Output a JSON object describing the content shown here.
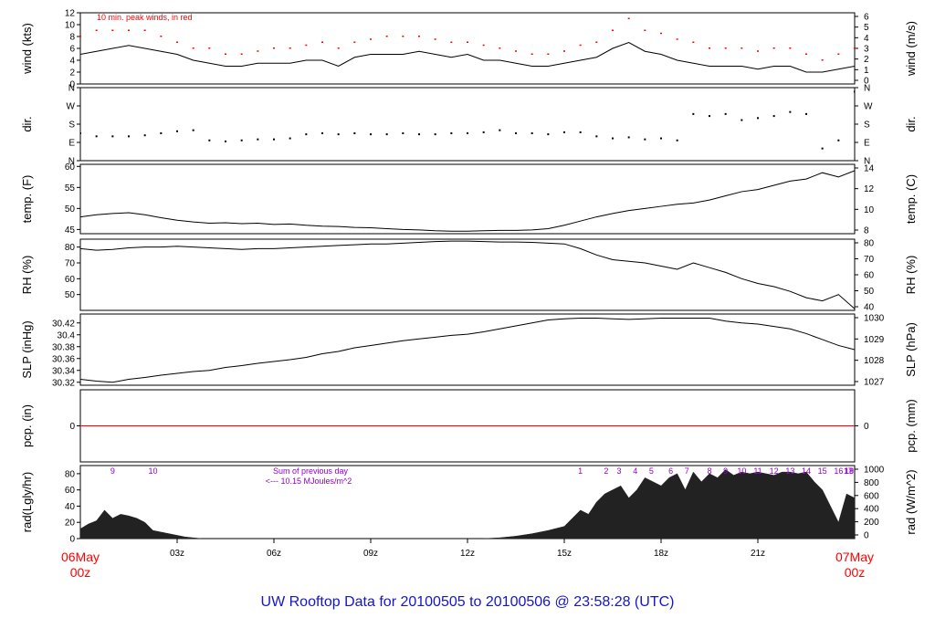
{
  "footer_title": "UW Rooftop Data for 20100505  to  20100506 @ 23:58:28  (UTC)",
  "x_axis": {
    "range_hours": [
      0,
      24
    ],
    "ticks": [
      {
        "h": 3,
        "label": "03z"
      },
      {
        "h": 6,
        "label": "06z"
      },
      {
        "h": 9,
        "label": "09z"
      },
      {
        "h": 12,
        "label": "12z"
      },
      {
        "h": 15,
        "label": "15z"
      },
      {
        "h": 18,
        "label": "18z"
      },
      {
        "h": 21,
        "label": "21z"
      }
    ],
    "start_label_top": "06May",
    "start_label_bottom": "00z",
    "end_label_top": "07May",
    "end_label_bottom": "00z"
  },
  "colors": {
    "axis": "#000000",
    "peak": "#ff0000",
    "precip_line": "#ff0000",
    "hour_markers": "#9400d3",
    "footer": "#1414d2",
    "date_labels": "#ff0000",
    "rad_fill": "#222222"
  },
  "chart_data": [
    {
      "type": "line",
      "id": "wind",
      "ylabel": "wind (kts)",
      "ylabel_right": "wind (m/s)",
      "ylim": [
        0,
        12
      ],
      "yticks": [
        0,
        2,
        4,
        6,
        8,
        10,
        12
      ],
      "yticks_right": [
        0,
        1,
        2,
        3,
        4,
        5,
        6
      ],
      "annotation": "10 min. peak winds, in red",
      "x": [
        0,
        0.5,
        1,
        1.5,
        2,
        2.5,
        3,
        3.5,
        4,
        4.5,
        5,
        5.5,
        6,
        6.5,
        7,
        7.5,
        8,
        8.5,
        9,
        9.5,
        10,
        10.5,
        11,
        11.5,
        12,
        12.5,
        13,
        13.5,
        14,
        14.5,
        15,
        15.5,
        16,
        16.5,
        17,
        17.5,
        18,
        18.5,
        19,
        19.5,
        20,
        20.5,
        21,
        21.5,
        22,
        22.5,
        23,
        23.5,
        24
      ],
      "values": [
        5,
        5.5,
        6,
        6.5,
        6,
        5.5,
        5,
        4,
        3.5,
        3,
        3,
        3.5,
        3.5,
        3.5,
        4,
        4,
        3,
        4.5,
        5,
        5,
        5,
        5.5,
        5,
        4.5,
        5,
        4,
        4,
        3.5,
        3,
        3,
        3.5,
        4,
        4.5,
        6,
        7,
        5.5,
        5,
        4,
        3.5,
        3,
        3,
        3,
        2.5,
        3,
        3,
        2,
        2,
        2.5,
        3
      ],
      "peak_values": [
        8,
        9,
        9,
        9,
        9,
        8,
        7,
        6,
        6,
        5,
        5,
        5.5,
        6,
        6,
        6.5,
        7,
        6,
        7,
        7.5,
        8,
        8,
        8,
        7.5,
        7,
        7,
        6.5,
        6,
        5.5,
        5,
        5,
        5.5,
        6.5,
        7,
        9,
        11,
        9,
        8.5,
        7.5,
        7,
        6,
        6,
        6,
        5.5,
        6,
        6,
        5,
        4,
        5,
        6
      ]
    },
    {
      "type": "scatter",
      "id": "dir",
      "ylabel": "dir.",
      "ylabel_right": "dir.",
      "ylim": [
        0,
        360
      ],
      "yticks": [
        {
          "v": 0,
          "label": "N"
        },
        {
          "v": 90,
          "label": "E"
        },
        {
          "v": 180,
          "label": "S"
        },
        {
          "v": 270,
          "label": "W"
        },
        {
          "v": 360,
          "label": "N"
        }
      ],
      "x": [
        0,
        0.5,
        1,
        1.5,
        2,
        2.5,
        3,
        3.5,
        4,
        4.5,
        5,
        5.5,
        6,
        6.5,
        7,
        7.5,
        8,
        8.5,
        9,
        9.5,
        10,
        10.5,
        11,
        11.5,
        12,
        12.5,
        13,
        13.5,
        14,
        14.5,
        15,
        15.5,
        16,
        16.5,
        17,
        17.5,
        18,
        18.5,
        19,
        19.5,
        20,
        20.5,
        21,
        21.5,
        22,
        22.5,
        23,
        23.5,
        24
      ],
      "values": [
        135,
        120,
        120,
        120,
        125,
        135,
        145,
        150,
        100,
        95,
        100,
        105,
        105,
        110,
        130,
        135,
        130,
        135,
        130,
        130,
        135,
        130,
        130,
        135,
        135,
        140,
        150,
        135,
        135,
        130,
        140,
        140,
        120,
        110,
        115,
        105,
        110,
        100,
        230,
        220,
        230,
        200,
        210,
        220,
        240,
        230,
        60,
        100,
        340
      ]
    },
    {
      "type": "line",
      "id": "temp",
      "ylabel": "temp. (F)",
      "ylabel_right": "temp. (C)",
      "ylim": [
        44,
        60.5
      ],
      "yticks": [
        45,
        50,
        55,
        60
      ],
      "yticks_right": [
        8,
        10,
        12,
        14
      ],
      "x": [
        0,
        0.5,
        1,
        1.5,
        2,
        2.5,
        3,
        3.5,
        4,
        4.5,
        5,
        5.5,
        6,
        6.5,
        7,
        7.5,
        8,
        8.5,
        9,
        9.5,
        10,
        10.5,
        11,
        11.5,
        12,
        12.5,
        13,
        13.5,
        14,
        14.5,
        15,
        15.5,
        16,
        16.5,
        17,
        17.5,
        18,
        18.5,
        19,
        19.5,
        20,
        20.5,
        21,
        21.5,
        22,
        22.5,
        23,
        23.5,
        24
      ],
      "values": [
        48,
        48.5,
        48.8,
        49,
        48.5,
        47.8,
        47.2,
        46.8,
        46.5,
        46.6,
        46.4,
        46.5,
        46.2,
        46.3,
        46,
        45.8,
        45.7,
        45.5,
        45.4,
        45.2,
        45,
        44.9,
        44.7,
        44.6,
        44.6,
        44.7,
        44.8,
        44.8,
        44.9,
        45.2,
        46,
        47,
        48,
        48.8,
        49.5,
        50,
        50.5,
        51,
        51.3,
        52,
        53,
        54,
        54.5,
        55.5,
        56.5,
        57,
        58.5,
        57.5,
        59
      ]
    },
    {
      "type": "line",
      "id": "rh",
      "ylabel": "RH (%)",
      "ylabel_right": "RH (%)",
      "ylim": [
        40,
        85
      ],
      "yticks": [
        50,
        60,
        70,
        80
      ],
      "yticks_right": [
        40,
        50,
        60,
        70,
        80
      ],
      "x": [
        0,
        0.5,
        1,
        1.5,
        2,
        2.5,
        3,
        3.5,
        4,
        4.5,
        5,
        5.5,
        6,
        6.5,
        7,
        7.5,
        8,
        8.5,
        9,
        9.5,
        10,
        10.5,
        11,
        11.5,
        12,
        12.5,
        13,
        13.5,
        14,
        14.5,
        15,
        15.5,
        16,
        16.5,
        17,
        17.5,
        18,
        18.5,
        19,
        19.5,
        20,
        20.5,
        21,
        21.5,
        22,
        22.5,
        23,
        23.5,
        24
      ],
      "values": [
        79,
        78,
        78.5,
        79.5,
        80,
        80,
        80.5,
        80,
        79.5,
        79,
        78.5,
        79,
        79,
        79.5,
        80,
        80.5,
        81,
        81.5,
        82,
        82,
        82.5,
        83,
        83.5,
        83.8,
        83.8,
        83.5,
        83.2,
        83.2,
        83,
        82.5,
        82,
        79,
        75,
        72,
        71,
        70,
        68,
        66,
        70,
        67,
        64,
        60,
        57,
        55,
        52,
        48,
        46,
        50,
        41
      ]
    },
    {
      "type": "line",
      "id": "slp",
      "ylabel": "SLP (inHg)",
      "ylabel_right": "SLP (hPa)",
      "ylim": [
        30.315,
        30.435
      ],
      "yticks": [
        30.32,
        30.34,
        30.36,
        30.38,
        30.4,
        30.42
      ],
      "yticks_right": [
        1027,
        1028,
        1029,
        1030
      ],
      "x": [
        0,
        0.5,
        1,
        1.5,
        2,
        2.5,
        3,
        3.5,
        4,
        4.5,
        5,
        5.5,
        6,
        6.5,
        7,
        7.5,
        8,
        8.5,
        9,
        9.5,
        10,
        10.5,
        11,
        11.5,
        12,
        12.5,
        13,
        13.5,
        14,
        14.5,
        15,
        15.5,
        16,
        16.5,
        17,
        17.5,
        18,
        18.5,
        19,
        19.5,
        20,
        20.5,
        21,
        21.5,
        22,
        22.5,
        23,
        23.5,
        24
      ],
      "values": [
        30.325,
        30.322,
        30.32,
        30.325,
        30.328,
        30.332,
        30.335,
        30.338,
        30.34,
        30.345,
        30.348,
        30.352,
        30.355,
        30.358,
        30.362,
        30.368,
        30.372,
        30.378,
        30.382,
        30.386,
        30.39,
        30.393,
        30.396,
        30.399,
        30.401,
        30.405,
        30.41,
        30.415,
        30.42,
        30.425,
        30.427,
        30.428,
        30.428,
        30.427,
        30.426,
        30.427,
        30.428,
        30.428,
        30.428,
        30.428,
        30.423,
        30.42,
        30.418,
        30.414,
        30.41,
        30.402,
        30.392,
        30.382,
        30.375
      ]
    },
    {
      "type": "line",
      "id": "pcp",
      "ylabel": "pcp. (in)",
      "ylabel_right": "pcp. (mm)",
      "ylim": [
        -1,
        1
      ],
      "yticks": [
        0
      ],
      "yticks_right": [
        0
      ],
      "x": [
        0,
        24
      ],
      "values": [
        0,
        0
      ]
    },
    {
      "type": "area",
      "id": "rad",
      "ylabel": "rad(Lgly/hr)",
      "ylabel_right": "rad (W/m^2)",
      "ylim": [
        0,
        90
      ],
      "yticks": [
        0,
        20,
        40,
        60,
        80
      ],
      "yticks_right": [
        0,
        200,
        400,
        600,
        800,
        1000
      ],
      "annotation_line1": "Sum of previous day",
      "annotation_line2": "<--- 10.15 MJoules/m^2",
      "hour_markers": [
        {
          "h": 1,
          "label": "9"
        },
        {
          "h": 2.25,
          "label": "10"
        },
        {
          "h": 15.5,
          "label": "1"
        },
        {
          "h": 16.3,
          "label": "2"
        },
        {
          "h": 16.7,
          "label": "3"
        },
        {
          "h": 17.2,
          "label": "4"
        },
        {
          "h": 17.7,
          "label": "5"
        },
        {
          "h": 18.3,
          "label": "6"
        },
        {
          "h": 18.8,
          "label": "7"
        },
        {
          "h": 19.5,
          "label": "8"
        },
        {
          "h": 20,
          "label": "9"
        },
        {
          "h": 20.5,
          "label": "10"
        },
        {
          "h": 21,
          "label": "11"
        },
        {
          "h": 21.5,
          "label": "12"
        },
        {
          "h": 22,
          "label": "13"
        },
        {
          "h": 22.5,
          "label": "14"
        },
        {
          "h": 23,
          "label": "15"
        },
        {
          "h": 23.5,
          "label": "16"
        },
        {
          "h": 23.8,
          "label": "17"
        },
        {
          "h": 24,
          "label": "18"
        },
        {
          "h": 24,
          "label": "19"
        }
      ],
      "x": [
        0,
        0.25,
        0.5,
        0.75,
        1,
        1.25,
        1.5,
        1.75,
        2,
        2.25,
        2.5,
        2.75,
        3,
        3.25,
        3.5,
        3.75,
        12.5,
        13,
        13.5,
        14,
        14.5,
        15,
        15.25,
        15.5,
        15.75,
        16,
        16.25,
        16.5,
        16.75,
        17,
        17.25,
        17.5,
        17.75,
        18,
        18.25,
        18.5,
        18.75,
        19,
        19.25,
        19.5,
        19.75,
        20,
        20.25,
        20.5,
        20.75,
        21,
        21.25,
        21.5,
        21.75,
        22,
        22.25,
        22.5,
        22.75,
        23,
        23.25,
        23.5,
        23.75,
        24
      ],
      "values": [
        12,
        18,
        22,
        35,
        25,
        30,
        28,
        25,
        20,
        10,
        8,
        6,
        4,
        2,
        1,
        0,
        0,
        1,
        3,
        6,
        10,
        15,
        25,
        35,
        30,
        45,
        55,
        60,
        65,
        50,
        60,
        75,
        70,
        65,
        75,
        80,
        60,
        82,
        70,
        80,
        75,
        85,
        78,
        82,
        80,
        82,
        80,
        78,
        82,
        82,
        80,
        82,
        70,
        60,
        40,
        20,
        55,
        50
      ]
    }
  ]
}
